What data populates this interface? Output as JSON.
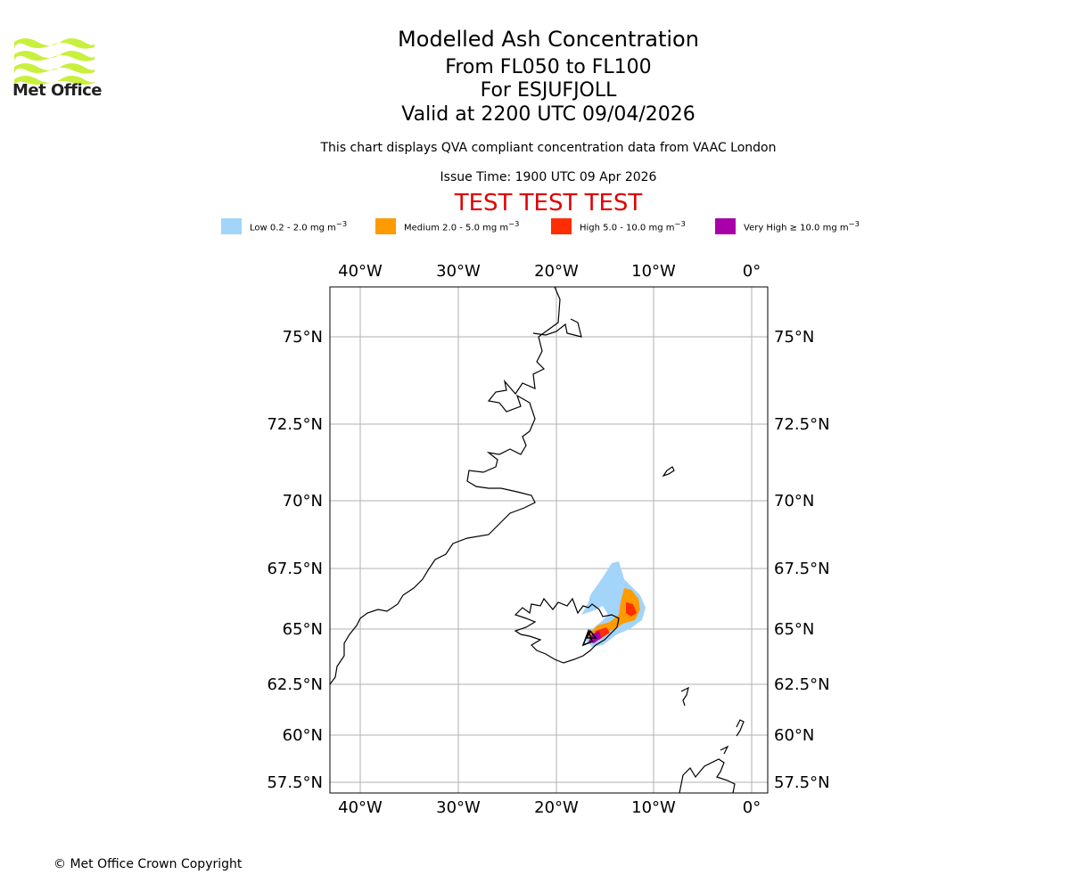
{
  "logo": {
    "text": "Met Office",
    "color": "#c8f03c"
  },
  "header": {
    "title": "Modelled Ash Concentration",
    "level_range": "From FL050 to FL100",
    "volcano": "For ESJUFJOLL",
    "valid": "Valid at 2200 UTC 09/04/2026",
    "description": "This chart displays QVA compliant concentration data from VAAC London",
    "issue_time": "Issue Time: 1900 UTC 09 Apr 2026",
    "test_banner": "TEST TEST TEST"
  },
  "legend": [
    {
      "label": "Low 0.2 - 2.0 mg m",
      "color": "#a3d4fa"
    },
    {
      "label": "Medium 2.0 - 5.0 mg m",
      "color": "#ff9a00"
    },
    {
      "label": "High 5.0 - 10.0 mg m",
      "color": "#ff2d00"
    },
    {
      "label": "Very High ≥ 10.0 mg m",
      "color": "#aa00aa"
    }
  ],
  "legend_unit_exponent": "−3",
  "map": {
    "lon_ticks": [
      "40°W",
      "30°W",
      "20°W",
      "10°W",
      "0°"
    ],
    "lat_ticks": [
      "75°N",
      "72.5°N",
      "70°N",
      "67.5°N",
      "65°N",
      "62.5°N",
      "60°N",
      "57.5°N"
    ]
  },
  "footer": {
    "copyright": "© Met Office Crown Copyright"
  }
}
